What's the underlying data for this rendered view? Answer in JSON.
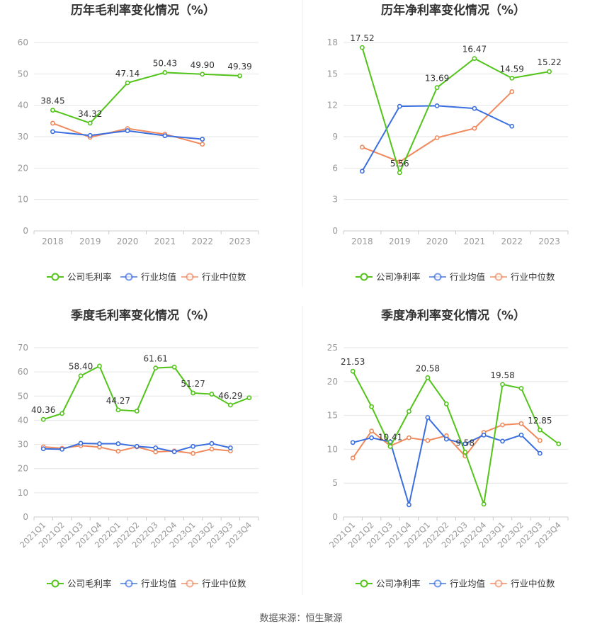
{
  "colors": {
    "company": "#52c41a",
    "avg": "#3b6fe0",
    "median": "#f08a5d",
    "grid": "#e6e6e6",
    "axis": "#cccccc",
    "text": "#333333",
    "tick": "#999999"
  },
  "source": "数据来源：恒生聚源",
  "chart_data": [
    {
      "type": "line",
      "title": "历年毛利率变化情况（%）",
      "categories": [
        "2018",
        "2019",
        "2020",
        "2021",
        "2022",
        "2023"
      ],
      "ylim": [
        0,
        60
      ],
      "yticks": [
        0,
        10,
        20,
        30,
        40,
        50,
        60
      ],
      "grid": true,
      "legend": "bottom",
      "series": [
        {
          "name": "公司毛利率",
          "values": [
            38.45,
            34.32,
            47.14,
            50.43,
            49.9,
            49.39
          ],
          "labels": [
            "38.45",
            "34.32",
            "47.14",
            "50.43",
            "49.90",
            "49.39"
          ]
        },
        {
          "name": "行业均值",
          "values": [
            31.6,
            30.4,
            31.9,
            30.3,
            29.2,
            null
          ]
        },
        {
          "name": "行业中位数",
          "values": [
            34.3,
            29.8,
            32.6,
            30.8,
            27.6,
            null
          ]
        }
      ]
    },
    {
      "type": "line",
      "title": "历年净利率变化情况（%）",
      "categories": [
        "2018",
        "2019",
        "2020",
        "2021",
        "2022",
        "2023"
      ],
      "ylim": [
        0,
        18
      ],
      "yticks": [
        0,
        3,
        6,
        9,
        12,
        15,
        18
      ],
      "grid": true,
      "legend": "bottom",
      "series": [
        {
          "name": "公司净利率",
          "values": [
            17.52,
            5.56,
            13.69,
            16.47,
            14.59,
            15.22
          ],
          "labels": [
            "17.52",
            "5.56",
            "13.69",
            "16.47",
            "14.59",
            "15.22"
          ]
        },
        {
          "name": "行业均值",
          "values": [
            5.7,
            11.9,
            11.95,
            11.7,
            10.0,
            null
          ]
        },
        {
          "name": "行业中位数",
          "values": [
            8.0,
            6.6,
            8.9,
            9.8,
            13.3,
            null
          ]
        }
      ]
    },
    {
      "type": "line",
      "title": "季度毛利率变化情况（%）",
      "categories": [
        "2021Q1",
        "2021Q2",
        "2021Q3",
        "2021Q4",
        "2022Q1",
        "2022Q2",
        "2022Q3",
        "2022Q4",
        "2023Q1",
        "2023Q2",
        "2023Q3",
        "2023Q4"
      ],
      "ylim": [
        0,
        70
      ],
      "yticks": [
        0,
        10,
        20,
        30,
        40,
        50,
        60,
        70
      ],
      "grid": true,
      "legend": "bottom",
      "series": [
        {
          "name": "公司毛利率",
          "values": [
            40.36,
            42.8,
            58.4,
            62.4,
            44.27,
            43.8,
            61.61,
            62.0,
            51.27,
            50.8,
            46.29,
            49.3
          ],
          "labels": [
            "40.36",
            "",
            "58.40",
            "",
            "44.27",
            "",
            "61.61",
            "",
            "51.27",
            "",
            "46.29",
            ""
          ]
        },
        {
          "name": "行业均值",
          "values": [
            28.2,
            28.0,
            30.5,
            30.3,
            30.3,
            29.2,
            28.6,
            27.0,
            29.2,
            30.4,
            28.6,
            null
          ]
        },
        {
          "name": "行业中位数",
          "values": [
            29.0,
            28.4,
            29.5,
            28.9,
            27.2,
            29.0,
            26.9,
            27.3,
            26.3,
            28.1,
            27.3,
            null
          ]
        }
      ]
    },
    {
      "type": "line",
      "title": "季度净利率变化情况（%）",
      "categories": [
        "2021Q1",
        "2021Q2",
        "2021Q3",
        "2021Q4",
        "2022Q1",
        "2022Q2",
        "2022Q3",
        "2022Q4",
        "2023Q1",
        "2023Q2",
        "2023Q3",
        "2023Q4"
      ],
      "ylim": [
        0,
        25
      ],
      "yticks": [
        0,
        5,
        10,
        15,
        20,
        25
      ],
      "grid": true,
      "legend": "bottom",
      "series": [
        {
          "name": "公司净利率",
          "values": [
            21.53,
            16.3,
            10.41,
            15.6,
            20.58,
            16.7,
            9.58,
            1.9,
            19.58,
            19.0,
            12.85,
            10.8
          ],
          "labels": [
            "21.53",
            "",
            "10.41",
            "",
            "20.58",
            "",
            "9.58",
            "",
            "19.58",
            "",
            "12.85",
            ""
          ]
        },
        {
          "name": "行业均值",
          "values": [
            11.0,
            11.7,
            11.1,
            1.8,
            14.7,
            11.5,
            10.8,
            12.1,
            11.2,
            12.1,
            9.4,
            null
          ]
        },
        {
          "name": "行业中位数",
          "values": [
            8.7,
            12.7,
            10.5,
            11.7,
            11.3,
            12.0,
            9.0,
            12.5,
            13.6,
            13.8,
            11.3,
            null
          ]
        }
      ]
    }
  ]
}
